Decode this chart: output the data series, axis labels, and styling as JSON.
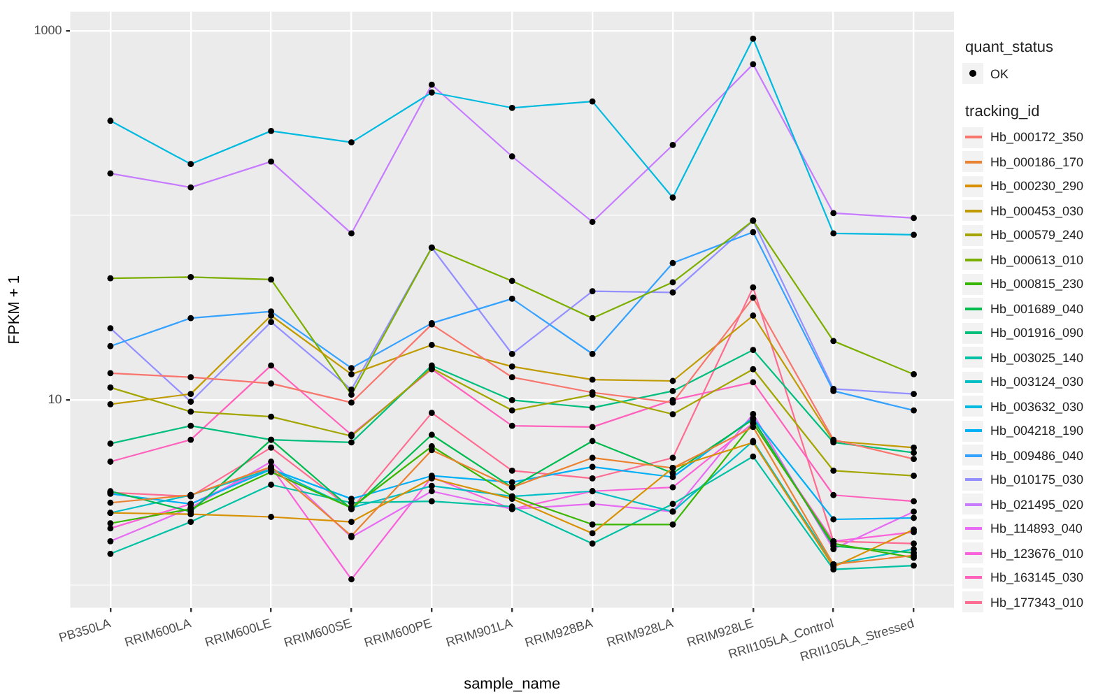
{
  "chart_data": {
    "type": "line",
    "xlabel": "sample_name",
    "ylabel": "FPKM + 1",
    "legend_title": "tracking_id",
    "annotations": [
      "quant_status"
    ],
    "categories": [
      "PB350LA",
      "RRIM600LA",
      "RRIM600LE",
      "RRIM600SE",
      "RRIM600PE",
      "RRIM901LA",
      "RRIM928BA",
      "RRIM928LA",
      "RRIM928LE",
      "RRII105LA_Control",
      "RRII105LA_Stressed"
    ],
    "log": "y",
    "ylim": [
      0.75,
      1270
    ],
    "yticks": [
      {
        "value": 1,
        "label": null
      },
      10,
      {
        "value": 100,
        "label": null
      },
      1000
    ],
    "grid": true,
    "legend": "right",
    "line_style": "solid",
    "series": [
      {
        "name": "Hb_000172_350",
        "color": "#f8766d",
        "values": [
          14.0,
          13.3,
          12.3,
          9.7,
          25.7,
          13.3,
          11.0,
          9.7,
          35.9,
          6.1,
          4.8
        ]
      },
      {
        "name": "Hb_000186_170",
        "color": "#ea8331",
        "values": [
          2.78,
          3.06,
          4.35,
          1.84,
          5.36,
          3.37,
          4.87,
          4.29,
          7.15,
          1.29,
          1.44
        ]
      },
      {
        "name": "Hb_000230_290",
        "color": "#d89000",
        "values": [
          2.45,
          2.41,
          2.33,
          2.19,
          3.77,
          2.92,
          1.9,
          4.29,
          5.9,
          1.25,
          1.99
        ]
      },
      {
        "name": "Hb_000453_030",
        "color": "#c09b00",
        "values": [
          9.5,
          10.8,
          28.7,
          13.8,
          19.9,
          15.2,
          12.9,
          12.7,
          28.7,
          6.0,
          5.53
        ]
      },
      {
        "name": "Hb_000579_240",
        "color": "#a3a500",
        "values": [
          11.7,
          8.66,
          8.13,
          6.39,
          14.9,
          8.8,
          10.7,
          8.39,
          14.7,
          4.15,
          3.89
        ]
      },
      {
        "name": "Hb_000613_010",
        "color": "#7cae00",
        "values": [
          45.7,
          46.4,
          45.0,
          10.7,
          67.0,
          44.2,
          27.8,
          43.5,
          93.8,
          20.9,
          13.8
        ]
      },
      {
        "name": "Hb_000815_230",
        "color": "#39b600",
        "values": [
          2.15,
          2.57,
          4.08,
          2.61,
          5.62,
          3.01,
          2.12,
          2.12,
          7.5,
          1.67,
          1.4
        ]
      },
      {
        "name": "Hb_001689_040",
        "color": "#00bb4e",
        "values": [
          3.21,
          2.49,
          6.1,
          2.57,
          6.49,
          3.37,
          6.0,
          4.02,
          7.87,
          1.62,
          1.49
        ]
      },
      {
        "name": "Hb_001916_090",
        "color": "#00bf7d",
        "values": [
          5.81,
          7.26,
          6.1,
          5.9,
          15.4,
          10.0,
          9.09,
          11.2,
          18.7,
          5.9,
          5.19
        ]
      },
      {
        "name": "Hb_003025_140",
        "color": "#00c1a3",
        "values": [
          1.47,
          2.19,
          3.48,
          2.78,
          2.83,
          2.65,
          1.67,
          2.74,
          4.95,
          1.21,
          1.27
        ]
      },
      {
        "name": "Hb_003124_030",
        "color": "#00bfc4",
        "values": [
          2.45,
          3.06,
          4.22,
          2.61,
          3.43,
          3.01,
          3.21,
          2.49,
          6.0,
          1.29,
          1.56
        ]
      },
      {
        "name": "Hb_003632_030",
        "color": "#00bae0",
        "values": [
          326,
          190,
          287,
          249,
          464,
          383,
          415,
          125,
          908,
          80,
          78.7
        ]
      },
      {
        "name": "Hb_004218_190",
        "color": "#00b0f6",
        "values": [
          3.11,
          2.74,
          4.22,
          2.92,
          3.89,
          3.59,
          4.35,
          3.83,
          8.0,
          2.26,
          2.3
        ]
      },
      {
        "name": "Hb_009486_040",
        "color": "#35a2ff",
        "values": [
          19.6,
          27.8,
          30.2,
          14.9,
          26.1,
          35.4,
          17.8,
          55.3,
          81.3,
          11.2,
          8.8
        ]
      },
      {
        "name": "Hb_010175_030",
        "color": "#9590ff",
        "values": [
          24.5,
          9.8,
          26.5,
          11.4,
          67.0,
          17.8,
          38.9,
          38.3,
          93.8,
          11.5,
          10.8
        ]
      },
      {
        "name": "Hb_021495_020",
        "color": "#c77cff",
        "values": [
          169,
          142,
          196,
          80,
          511,
          209,
          92.3,
          241,
          660,
          103,
          96.9
        ]
      },
      {
        "name": "Hb_114893_040",
        "color": "#e76bf3",
        "values": [
          1.72,
          2.61,
          4.64,
          1.81,
          3.21,
          2.57,
          2.74,
          2.49,
          8.4,
          1.56,
          2.49
        ]
      },
      {
        "name": "Hb_123676_010",
        "color": "#fa62db",
        "values": [
          2.02,
          2.74,
          4.35,
          1.07,
          3.83,
          2.57,
          3.21,
          3.37,
          7.5,
          1.72,
          1.93
        ]
      },
      {
        "name": "Hb_163145_030",
        "color": "#ff62bc",
        "values": [
          4.64,
          6.1,
          15.4,
          6.49,
          14.7,
          7.26,
          7.15,
          10.0,
          12.5,
          3.06,
          2.83
        ]
      },
      {
        "name": "Hb_177343_010",
        "color": "#ff6c91",
        "values": [
          3.16,
          3.01,
          5.53,
          2.57,
          8.53,
          4.15,
          3.77,
          4.87,
          40.8,
          1.72,
          1.67
        ]
      },
      {
        "name": "OK",
        "type": "scatter",
        "marker": "circle",
        "color": "#000000",
        "x": [
          "PB350LA",
          "RRIM600LA",
          "RRIM600LE",
          "RRIM600SE",
          "RRIM600PE",
          "RRIM901LA",
          "RRIM928BA",
          "RRIM928LA",
          "RRIM928LE",
          "RRII105LA_Control",
          "RRII105LA_Stressed",
          "PB350LA",
          "RRIM600LA",
          "RRIM600LE",
          "RRIM600SE",
          "RRIM600PE",
          "RRIM901LA",
          "RRIM928BA",
          "RRIM928LA",
          "RRIM928LE",
          "RRII105LA_Control",
          "RRII105LA_Stressed",
          "PB350LA",
          "RRIM600LA",
          "RRIM600LE",
          "RRIM600SE",
          "RRIM600PE",
          "RRIM901LA",
          "RRIM928BA",
          "RRIM928LA",
          "RRIM928LE",
          "RRII105LA_Control",
          "RRII105LA_Stressed",
          "PB350LA",
          "RRIM600LA",
          "RRIM600LE",
          "RRIM600SE",
          "RRIM600PE",
          "RRIM901LA",
          "RRIM928BA",
          "RRIM928LA",
          "RRIM928LE",
          "RRII105LA_Control",
          "RRII105LA_Stressed",
          "PB350LA",
          "RRIM600LA",
          "RRIM600LE",
          "RRIM600SE",
          "RRIM600PE",
          "RRIM901LA",
          "RRIM928BA",
          "RRIM928LA",
          "RRIM928LE",
          "RRII105LA_Control",
          "RRII105LA_Stressed",
          "PB350LA",
          "RRIM600LA",
          "RRIM600LE",
          "RRIM600SE",
          "RRIM600PE",
          "RRIM901LA",
          "RRIM928BA",
          "RRIM928LA",
          "RRIM928LE",
          "RRII105LA_Control",
          "RRII105LA_Stressed",
          "PB350LA",
          "RRIM600LA",
          "RRIM600LE",
          "RRIM600SE",
          "RRIM600PE",
          "RRIM901LA",
          "RRIM928BA",
          "RRIM928LA",
          "RRIM928LE",
          "RRII105LA_Control",
          "RRII105LA_Stressed",
          "PB350LA",
          "RRIM600LA",
          "RRIM600LE",
          "RRIM600SE",
          "RRIM600PE",
          "RRIM901LA",
          "RRIM928BA",
          "RRIM928LA",
          "RRIM928LE",
          "RRII105LA_Control",
          "RRII105LA_Stressed",
          "PB350LA",
          "RRIM600LA",
          "RRIM600LE",
          "RRIM600SE",
          "RRIM600PE",
          "RRIM901LA",
          "RRIM928BA",
          "RRIM928LA",
          "RRIM928LE",
          "RRII105LA_Control",
          "RRII105LA_Stressed",
          "PB350LA",
          "RRIM600LA",
          "RRIM600LE",
          "RRIM600SE",
          "RRIM600PE",
          "RRIM901LA",
          "RRIM928BA",
          "RRIM928LA",
          "RRIM928LE",
          "RRII105LA_Control",
          "RRII105LA_Stressed",
          "PB350LA",
          "RRIM600LA",
          "RRIM600LE",
          "RRIM600SE",
          "RRIM600PE",
          "RRIM901LA",
          "RRIM928BA",
          "RRIM928LA",
          "RRIM928LE",
          "RRII105LA_Control",
          "RRII105LA_Stressed",
          "PB350LA",
          "RRIM600LA",
          "RRIM600LE",
          "RRIM600SE",
          "RRIM600PE",
          "RRIM901LA",
          "RRIM928BA",
          "RRIM928LA",
          "RRIM928LE",
          "RRII105LA_Control",
          "RRII105LA_Stressed",
          "PB350LA",
          "RRIM600LA",
          "RRIM600LE",
          "RRIM600SE",
          "RRIM600PE",
          "RRIM901LA",
          "RRIM928BA",
          "RRIM928LA",
          "RRIM928LE",
          "RRII105LA_Control",
          "RRII105LA_Stressed",
          "PB350LA",
          "RRIM600LA",
          "RRIM600LE",
          "RRIM600SE",
          "RRIM600PE",
          "RRIM901LA",
          "RRIM928BA",
          "RRIM928LA",
          "RRIM928LE",
          "RRII105LA_Control",
          "RRII105LA_Stressed",
          "PB350LA",
          "RRIM600LA",
          "RRIM600LE",
          "RRIM600SE",
          "RRIM600PE",
          "RRIM901LA",
          "RRIM928BA",
          "RRIM928LA",
          "RRIM928LE",
          "RRII105LA_Control",
          "RRII105LA_Stressed",
          "PB350LA",
          "RRIM600LA",
          "RRIM600LE",
          "RRIM600SE",
          "RRIM600PE",
          "RRIM901LA",
          "RRIM928BA",
          "RRIM928LA",
          "RRIM928LE",
          "RRII105LA_Control",
          "RRII105LA_Stressed",
          "PB350LA",
          "RRIM600LA",
          "RRIM600LE",
          "RRIM600SE",
          "RRIM600PE",
          "RRIM901LA",
          "RRIM928BA",
          "RRIM928LA",
          "RRIM928LE",
          "RRII105LA_Control",
          "RRII105LA_Stressed",
          "PB350LA",
          "RRIM600LA",
          "RRIM600LE",
          "RRIM600SE",
          "RRIM600PE",
          "RRIM901LA",
          "RRIM928BA",
          "RRIM928LA",
          "RRIM928LE",
          "RRII105LA_Control",
          "RRII105LA_Stressed",
          "PB350LA",
          "RRIM600LA",
          "RRIM600LE",
          "RRIM600SE",
          "RRIM600PE",
          "RRIM901LA",
          "RRIM928BA",
          "RRIM928LA",
          "RRIM928LE",
          "RRII105LA_Control",
          "RRII105LA_Stressed",
          "PB350LA",
          "RRIM600LA",
          "RRIM600LE",
          "RRIM600SE",
          "RRIM600PE",
          "RRIM901LA",
          "RRIM928BA",
          "RRIM928LA",
          "RRIM928LE",
          "RRII105LA_Control",
          "RRII105LA_Stressed"
        ],
        "values": [
          14.0,
          13.3,
          12.3,
          9.7,
          25.7,
          13.3,
          11.0,
          9.7,
          35.9,
          6.1,
          4.8,
          2.78,
          3.06,
          4.35,
          1.84,
          5.36,
          3.37,
          4.87,
          4.29,
          7.15,
          1.29,
          1.44,
          2.45,
          2.41,
          2.33,
          2.19,
          3.77,
          2.92,
          1.9,
          4.29,
          5.9,
          1.25,
          1.99,
          9.5,
          10.8,
          28.7,
          13.8,
          19.9,
          15.2,
          12.9,
          12.7,
          28.7,
          6.0,
          5.53,
          11.7,
          8.66,
          8.13,
          6.39,
          14.9,
          8.8,
          10.7,
          8.39,
          14.7,
          4.15,
          3.89,
          45.7,
          46.4,
          45.0,
          10.7,
          67.0,
          44.2,
          27.8,
          43.5,
          93.8,
          20.9,
          13.8,
          2.15,
          2.57,
          4.08,
          2.61,
          5.62,
          3.01,
          2.12,
          2.12,
          7.5,
          1.67,
          1.4,
          3.21,
          2.49,
          6.1,
          2.57,
          6.49,
          3.37,
          6.0,
          4.02,
          7.87,
          1.62,
          1.49,
          5.81,
          7.26,
          6.1,
          5.9,
          15.4,
          10.0,
          9.09,
          11.2,
          18.7,
          5.9,
          5.19,
          1.47,
          2.19,
          3.48,
          2.78,
          2.83,
          2.65,
          1.67,
          2.74,
          4.95,
          1.21,
          1.27,
          2.45,
          3.06,
          4.22,
          2.61,
          3.43,
          3.01,
          3.21,
          2.49,
          6.0,
          1.29,
          1.56,
          326,
          190,
          287,
          249,
          464,
          383,
          415,
          125,
          908,
          80,
          78.7,
          3.11,
          2.74,
          4.22,
          2.92,
          3.89,
          3.59,
          4.35,
          3.83,
          8.0,
          2.26,
          2.3,
          19.6,
          27.8,
          30.2,
          14.9,
          26.1,
          35.4,
          17.8,
          55.3,
          81.3,
          11.2,
          8.8,
          24.5,
          9.8,
          26.5,
          11.4,
          67.0,
          17.8,
          38.9,
          38.3,
          93.8,
          11.5,
          10.8,
          169,
          142,
          196,
          80,
          511,
          209,
          92.3,
          241,
          660,
          103,
          96.9,
          1.72,
          2.61,
          4.64,
          1.81,
          3.21,
          2.57,
          2.74,
          2.49,
          8.4,
          1.56,
          2.49,
          2.02,
          2.74,
          4.35,
          1.07,
          3.83,
          2.57,
          3.21,
          3.37,
          7.5,
          1.72,
          1.93,
          4.64,
          6.1,
          15.4,
          6.49,
          14.7,
          7.26,
          7.15,
          10.0,
          12.5,
          3.06,
          2.83,
          3.16,
          3.01,
          5.53,
          2.57,
          8.53,
          4.15,
          3.77,
          4.87,
          40.8,
          1.72,
          1.67
        ]
      }
    ]
  }
}
